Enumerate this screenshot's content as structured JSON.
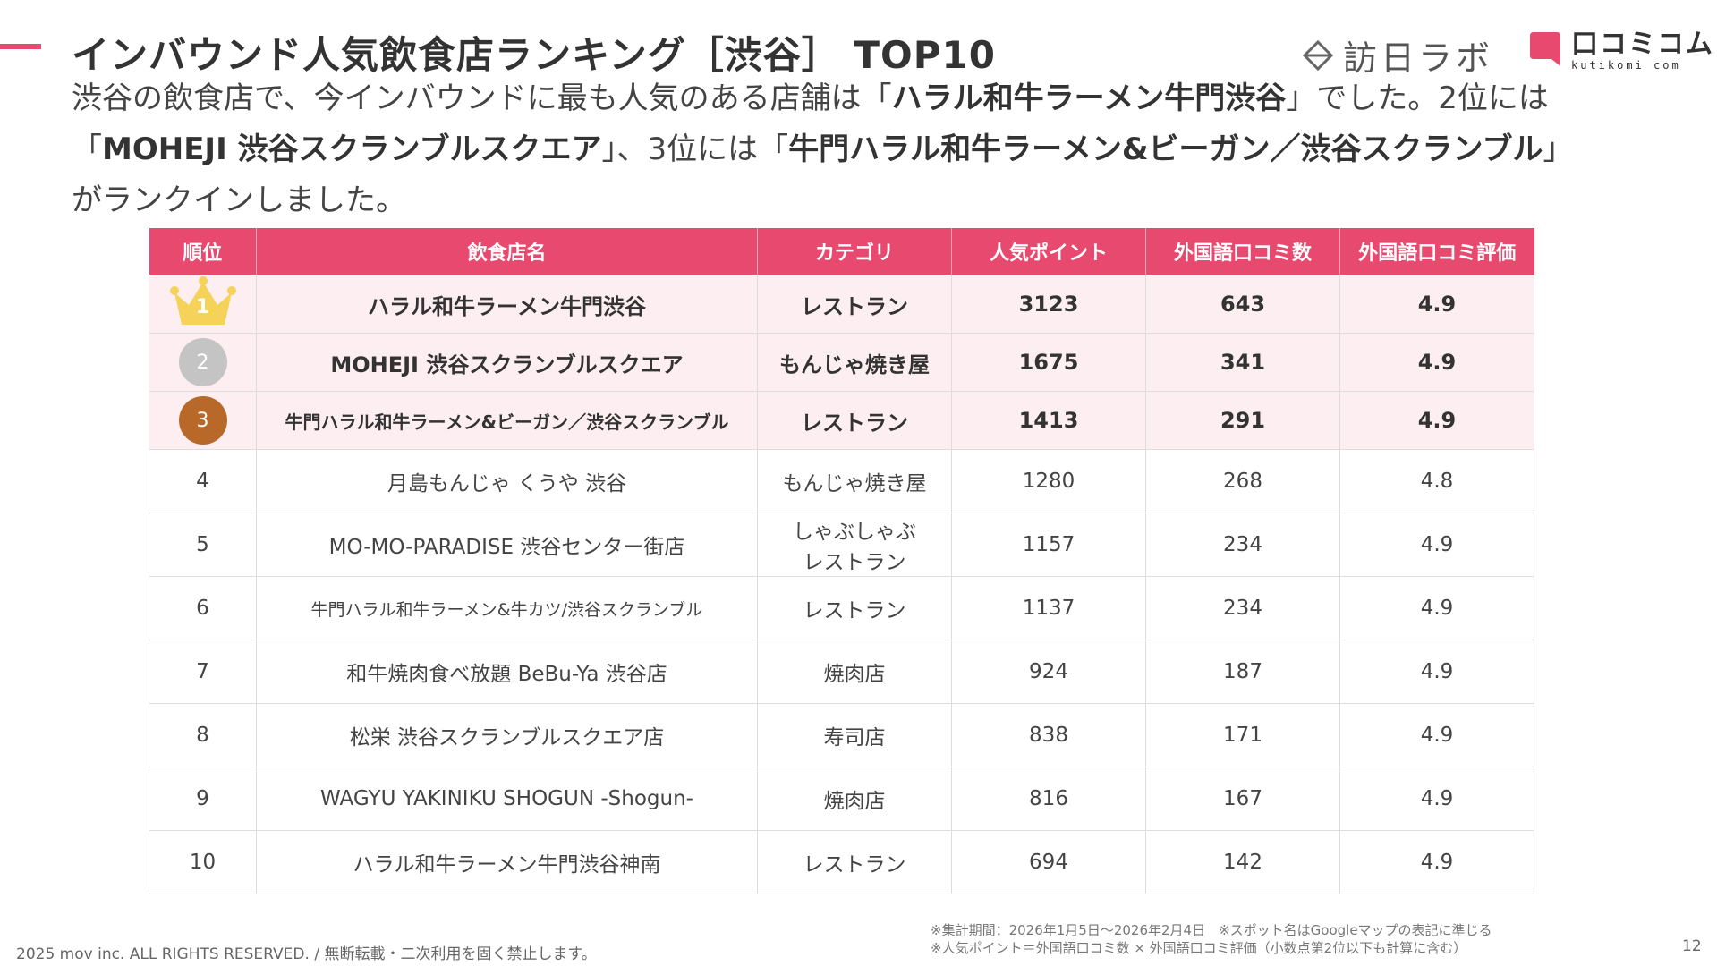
{
  "title": "インバウンド人気飲食店ランキング［渋谷］ TOP10",
  "logos": {
    "houjin_text": "訪日ラボ",
    "kuchikomi_text": "口コミコム",
    "kuchikomi_sub": "kutikomi com"
  },
  "summary": {
    "p1": "渋谷の飲食店で、今インバウンドに最も人気のある店舗は「",
    "b1": "ハラル和牛ラーメン牛門渋谷",
    "p2": "」でした。2位には",
    "p3": "「",
    "b2": "MOHEJI 渋谷スクランブルスクエア",
    "p4": "」、3位には「",
    "b3": "牛門ハラル和牛ラーメン&ビーガン／渋谷スクランブル",
    "p5": "」",
    "p6": "がランクインしました。"
  },
  "table": {
    "headers": [
      "順位",
      "飲食店名",
      "カテゴリ",
      "人気ポイント",
      "外国語口コミ数",
      "外国語口コミ評価"
    ],
    "rows": [
      {
        "rank": "1",
        "name": "ハラル和牛ラーメン牛門渋谷",
        "category": "レストラン",
        "points": "3123",
        "reviews": "643",
        "rating": "4.9"
      },
      {
        "rank": "2",
        "name": "MOHEJI 渋谷スクランブルスクエア",
        "category": "もんじゃ焼き屋",
        "points": "1675",
        "reviews": "341",
        "rating": "4.9"
      },
      {
        "rank": "3",
        "name": "牛門ハラル和牛ラーメン&ビーガン／渋谷スクランブル",
        "category": "レストラン",
        "points": "1413",
        "reviews": "291",
        "rating": "4.9"
      },
      {
        "rank": "4",
        "name": "月島もんじゃ くうや 渋谷",
        "category": "もんじゃ焼き屋",
        "points": "1280",
        "reviews": "268",
        "rating": "4.8"
      },
      {
        "rank": "5",
        "name": "MO-MO-PARADISE 渋谷センター街店",
        "category_line1": "しゃぶしゃぶ",
        "category_line2": "レストラン",
        "points": "1157",
        "reviews": "234",
        "rating": "4.9"
      },
      {
        "rank": "6",
        "name": "牛門ハラル和牛ラーメン&牛カツ/渋谷スクランブル",
        "category": "レストラン",
        "points": "1137",
        "reviews": "234",
        "rating": "4.9"
      },
      {
        "rank": "7",
        "name": "和牛焼肉食べ放題 BeBu-Ya 渋谷店",
        "category": "焼肉店",
        "points": "924",
        "reviews": "187",
        "rating": "4.9"
      },
      {
        "rank": "8",
        "name": "松栄 渋谷スクランブルスクエア店",
        "category": "寿司店",
        "points": "838",
        "reviews": "171",
        "rating": "4.9"
      },
      {
        "rank": "9",
        "name": "WAGYU YAKINIKU SHOGUN -Shogun-",
        "category": "焼肉店",
        "points": "816",
        "reviews": "167",
        "rating": "4.9"
      },
      {
        "rank": "10",
        "name": "ハラル和牛ラーメン牛門渋谷神南",
        "category": "レストラン",
        "points": "694",
        "reviews": "142",
        "rating": "4.9"
      }
    ]
  },
  "notes": {
    "line1": "※集計期間：2026年1月5日〜2026年2月4日　※スポット名はGoogleマップの表記に準じる",
    "line2": "※人気ポイント＝外国語口コミ数 × 外国語口コミ評価（小数点第2位以下も計算に含む）"
  },
  "copyright": "2025 mov inc. ALL RIGHTS RESERVED. / 無断転載・二次利用を固く禁止します。",
  "page_number": "12",
  "colors": {
    "accent": "#e8496f",
    "row_highlight": "#fdeef2",
    "gold": "#f5d25a",
    "silver": "#c4c4c4",
    "bronze": "#b8692a"
  }
}
